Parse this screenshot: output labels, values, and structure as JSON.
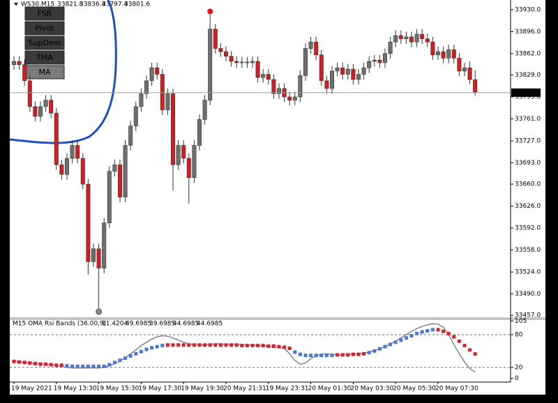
{
  "buttons": [
    "FSR",
    "Pivot",
    "SupDem",
    "TMA",
    "MA"
  ],
  "chart_data": [
    {
      "type": "candlestick",
      "title": "WS30.M15",
      "categories": [
        "19 May 2021",
        null,
        null,
        null,
        null,
        null,
        null,
        null,
        "19 May 13:30",
        null,
        null,
        null,
        null,
        null,
        null,
        null,
        "19 May 15:30",
        null,
        null,
        null,
        null,
        null,
        null,
        null,
        "19 May 17:30",
        null,
        null,
        null,
        null,
        null,
        null,
        null,
        "19 May 19:30",
        null,
        null,
        null,
        null,
        null,
        null,
        null,
        "20 May 21:31",
        null,
        null,
        null,
        null,
        null,
        null,
        null,
        "19 May 23:31",
        null,
        null,
        null,
        null,
        null,
        null,
        null,
        "20 May 01:30",
        null,
        null,
        null,
        null,
        null,
        null,
        null,
        "20 May 03:30",
        null,
        null,
        null,
        null,
        null,
        null,
        null,
        "20 May 05:30",
        null,
        null,
        null,
        null,
        null,
        null,
        null,
        "20 May 07:30",
        null,
        null,
        null,
        null,
        null,
        null,
        null
      ],
      "open": [
        33845,
        33850,
        33845,
        33820,
        33780,
        33765,
        33780,
        33790,
        33770,
        33690,
        33675,
        33700,
        33720,
        33700,
        33660,
        33540,
        33560,
        33530,
        33600,
        33680,
        33690,
        33640,
        33720,
        33750,
        33780,
        33800,
        33820,
        33840,
        33830,
        33775,
        33800,
        33690,
        33720,
        33700,
        33670,
        33720,
        33760,
        33790,
        33900,
        33870,
        33865,
        33858,
        33850,
        33848,
        33849,
        33848,
        33850,
        33825,
        33830,
        33822,
        33800,
        33808,
        33795,
        33790,
        33795,
        33828,
        33870,
        33880,
        33860,
        33820,
        33808,
        33835,
        33840,
        33830,
        33838,
        33822,
        33830,
        33840,
        33850,
        33852,
        33848,
        33862,
        33880,
        33890,
        33885,
        33888,
        33880,
        33892,
        33885,
        33880,
        33860,
        33865,
        33855,
        33868,
        33855,
        33835,
        33840,
        33821.8
      ],
      "high": [
        33858,
        33858,
        33853,
        33828,
        33788,
        33788,
        33798,
        33798,
        33778,
        33698,
        33708,
        33728,
        33728,
        33708,
        33668,
        33568,
        33568,
        33608,
        33688,
        33698,
        33698,
        33728,
        33758,
        33788,
        33808,
        33828,
        33848,
        33848,
        33838,
        33808,
        33808,
        33728,
        33728,
        33708,
        33728,
        33768,
        33798,
        33923,
        33908,
        33878,
        33873,
        33866,
        33858,
        33857,
        33857,
        33858,
        33858,
        33838,
        33838,
        33830,
        33816,
        33816,
        33803,
        33803,
        33836,
        33878,
        33888,
        33888,
        33868,
        33828,
        33843,
        33848,
        33848,
        33846,
        33846,
        33838,
        33848,
        33858,
        33860,
        33860,
        33870,
        33888,
        33898,
        33898,
        33896,
        33896,
        33900,
        33900,
        33893,
        33888,
        33873,
        33873,
        33876,
        33876,
        33863,
        33848,
        33850,
        33836.4
      ],
      "low": [
        33837,
        33837,
        33812,
        33772,
        33757,
        33757,
        33772,
        33762,
        33682,
        33667,
        33667,
        33692,
        33692,
        33652,
        33520,
        33532,
        33467,
        33522,
        33592,
        33672,
        33632,
        33632,
        33712,
        33742,
        33772,
        33792,
        33812,
        33822,
        33767,
        33767,
        33650,
        33682,
        33692,
        33630,
        33662,
        33712,
        33752,
        33782,
        33862,
        33857,
        33850,
        33842,
        33840,
        33840,
        33840,
        33840,
        33817,
        33817,
        33814,
        33792,
        33792,
        33787,
        33782,
        33782,
        33787,
        33820,
        33862,
        33852,
        33812,
        33800,
        33800,
        33827,
        33822,
        33822,
        33814,
        33814,
        33822,
        33832,
        33842,
        33840,
        33840,
        33854,
        33872,
        33877,
        33877,
        33872,
        33872,
        33877,
        33872,
        33852,
        33852,
        33847,
        33847,
        33847,
        33827,
        33827,
        33815,
        33797.4
      ],
      "close": [
        33850,
        33845,
        33820,
        33780,
        33765,
        33780,
        33790,
        33770,
        33690,
        33675,
        33700,
        33720,
        33700,
        33660,
        33540,
        33560,
        33530,
        33600,
        33680,
        33690,
        33640,
        33720,
        33750,
        33780,
        33800,
        33820,
        33840,
        33830,
        33775,
        33800,
        33690,
        33720,
        33700,
        33670,
        33720,
        33760,
        33790,
        33900,
        33870,
        33865,
        33858,
        33850,
        33848,
        33849,
        33848,
        33850,
        33825,
        33830,
        33822,
        33800,
        33808,
        33795,
        33790,
        33795,
        33828,
        33870,
        33880,
        33860,
        33820,
        33808,
        33835,
        33840,
        33830,
        33838,
        33822,
        33830,
        33840,
        33850,
        33852,
        33848,
        33862,
        33880,
        33890,
        33885,
        33888,
        33880,
        33892,
        33885,
        33880,
        33860,
        33865,
        33855,
        33868,
        33855,
        33835,
        33840,
        33821.8,
        33801.6
      ],
      "up_color": "#6f6f6f",
      "down_color": "#d11f1f",
      "last_price": 33801.6,
      "ylim": [
        33454,
        33945
      ],
      "yticks": [
        {
          "value": 33930,
          "label": "33930.0"
        },
        {
          "value": 33896,
          "label": "33896.0"
        },
        {
          "value": 33862,
          "label": "33862.0"
        },
        {
          "value": 33829,
          "label": "33829.0"
        },
        {
          "value": 33795,
          "label": "33795.0"
        },
        {
          "value": 33761,
          "label": "33761.0"
        },
        {
          "value": 33727,
          "label": "33727.0"
        },
        {
          "value": 33693,
          "label": "33693.0"
        },
        {
          "value": 33660,
          "label": "33660.0"
        },
        {
          "value": 33626,
          "label": "33626.0"
        },
        {
          "value": 33592,
          "label": "33592.0"
        },
        {
          "value": 33558,
          "label": "33558.0"
        },
        {
          "value": 33524,
          "label": "33524.0"
        },
        {
          "value": 33490,
          "label": "33490.0"
        },
        {
          "value": 33457,
          "label": "33457.0"
        }
      ]
    },
    {
      "type": "line",
      "title": "M15 OMA Rsi Bands (36.00,9)",
      "readout": [
        11.4204,
        49.6985,
        39.6985,
        44.6985,
        44.6985
      ],
      "ylim": [
        -5.5,
        108
      ],
      "yticks": [
        0,
        20,
        80,
        105
      ],
      "levels": [
        20,
        80
      ],
      "series": [
        {
          "color": "#7b8591",
          "style": "line",
          "values": [
            32,
            30,
            29,
            28,
            27,
            27,
            26,
            25,
            24,
            22,
            20,
            19,
            19,
            19,
            19,
            19,
            19,
            20,
            23,
            27,
            32,
            38,
            45,
            52,
            60,
            66,
            72,
            76,
            78,
            77,
            74,
            70,
            66,
            63,
            62,
            61,
            61,
            62,
            63,
            63,
            62,
            62,
            62,
            61,
            61,
            61,
            60,
            60,
            59,
            58,
            57,
            55,
            45,
            33,
            26,
            28,
            36,
            42,
            44,
            45,
            44,
            43,
            43,
            44,
            44,
            45,
            46,
            48,
            51,
            54,
            58,
            63,
            68,
            74,
            80,
            86,
            91,
            95,
            98,
            100,
            99,
            94,
            80,
            62,
            45,
            30,
            18,
            11.4204
          ]
        },
        {
          "color": "#d9222a",
          "style": "dots",
          "values": [
            31,
            30,
            29,
            28,
            27,
            26,
            26,
            25,
            24,
            24,
            null,
            null,
            null,
            null,
            null,
            null,
            null,
            null,
            null,
            null,
            null,
            null,
            null,
            null,
            null,
            null,
            null,
            null,
            null,
            61,
            61,
            61,
            61,
            61,
            61,
            61,
            61,
            61,
            61,
            61,
            61,
            61,
            61,
            60,
            60,
            60,
            60,
            60,
            59,
            59,
            58,
            57,
            55,
            null,
            null,
            null,
            null,
            null,
            null,
            null,
            null,
            43,
            43,
            43,
            44,
            44,
            45,
            null,
            null,
            null,
            null,
            null,
            null,
            null,
            null,
            null,
            null,
            null,
            null,
            null,
            89,
            86,
            82,
            76,
            68,
            60,
            52,
            44.6985
          ]
        },
        {
          "color": "#4a78d4",
          "style": "dots",
          "values": [
            null,
            null,
            null,
            null,
            null,
            null,
            null,
            null,
            null,
            null,
            23,
            22,
            22,
            22,
            22,
            22,
            22,
            22,
            25,
            29,
            33,
            37,
            41,
            45,
            49,
            53,
            56,
            58,
            60,
            null,
            null,
            null,
            null,
            null,
            null,
            null,
            null,
            null,
            null,
            null,
            null,
            null,
            null,
            null,
            null,
            null,
            null,
            null,
            null,
            null,
            null,
            null,
            null,
            48,
            44,
            42,
            42,
            42,
            42,
            42,
            42,
            null,
            null,
            null,
            null,
            null,
            null,
            47,
            50,
            54,
            58,
            62,
            66,
            70,
            74,
            78,
            82,
            85,
            87,
            89,
            null,
            null,
            null,
            null,
            null,
            null,
            null,
            null
          ]
        }
      ]
    }
  ]
}
